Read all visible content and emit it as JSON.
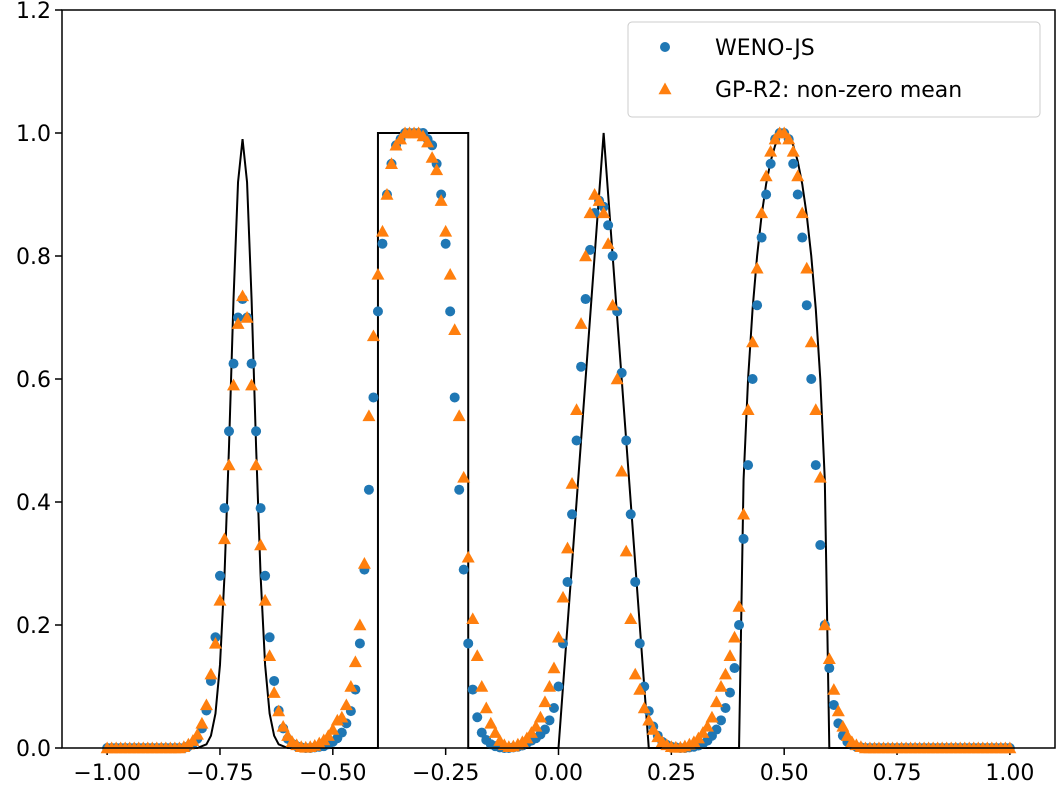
{
  "chart_data": {
    "type": "scatter",
    "x": [
      -1,
      -0.99,
      -0.98,
      -0.97,
      -0.96,
      -0.95,
      -0.94,
      -0.93,
      -0.92,
      -0.91,
      -0.9,
      -0.89,
      -0.88,
      -0.87,
      -0.86,
      -0.85,
      -0.84,
      -0.83,
      -0.82,
      -0.81,
      -0.8,
      -0.79,
      -0.78,
      -0.77,
      -0.76,
      -0.75,
      -0.74,
      -0.73,
      -0.72,
      -0.71,
      -0.7,
      -0.69,
      -0.68,
      -0.67,
      -0.66,
      -0.65,
      -0.64,
      -0.63,
      -0.62,
      -0.61,
      -0.6,
      -0.59,
      -0.58,
      -0.57,
      -0.56,
      -0.55,
      -0.54,
      -0.53,
      -0.52,
      -0.51,
      -0.5,
      -0.49,
      -0.48,
      -0.47,
      -0.46,
      -0.45,
      -0.44,
      -0.43,
      -0.42,
      -0.41,
      -0.4,
      -0.39,
      -0.38,
      -0.37,
      -0.36,
      -0.35,
      -0.34,
      -0.33,
      -0.32,
      -0.31,
      -0.3,
      -0.29,
      -0.28,
      -0.27,
      -0.26,
      -0.25,
      -0.24,
      -0.23,
      -0.22,
      -0.21,
      -0.2,
      -0.19,
      -0.18,
      -0.17,
      -0.16,
      -0.15,
      -0.14,
      -0.13,
      -0.12,
      -0.11,
      -0.1,
      -0.09,
      -0.08,
      -0.07,
      -0.06,
      -0.05,
      -0.04,
      -0.03,
      -0.02,
      -0.01,
      0,
      0.01,
      0.02,
      0.03,
      0.04,
      0.05,
      0.06,
      0.07,
      0.08,
      0.09,
      0.1,
      0.11,
      0.12,
      0.13,
      0.14,
      0.15,
      0.16,
      0.17,
      0.18,
      0.19,
      0.2,
      0.21,
      0.22,
      0.23,
      0.24,
      0.25,
      0.26,
      0.27,
      0.28,
      0.29,
      0.3,
      0.31,
      0.32,
      0.33,
      0.34,
      0.35,
      0.36,
      0.37,
      0.38,
      0.39,
      0.4,
      0.41,
      0.42,
      0.43,
      0.44,
      0.45,
      0.46,
      0.47,
      0.48,
      0.49,
      0.5,
      0.51,
      0.52,
      0.53,
      0.54,
      0.55,
      0.56,
      0.57,
      0.58,
      0.59,
      0.6,
      0.61,
      0.62,
      0.63,
      0.64,
      0.65,
      0.66,
      0.67,
      0.68,
      0.69,
      0.7,
      0.71,
      0.72,
      0.73,
      0.74,
      0.75,
      0.76,
      0.77,
      0.78,
      0.79,
      0.8,
      0.81,
      0.82,
      0.83,
      0.84,
      0.85,
      0.86,
      0.87,
      0.88,
      0.89,
      0.9,
      0.91,
      0.92,
      0.93,
      0.94,
      0.95,
      0.96,
      0.97,
      0.98,
      0.99,
      1
    ],
    "series": [
      {
        "name": "WENO-JS",
        "color": "#1f77b4",
        "marker": "circle",
        "values": [
          0,
          0,
          0,
          0,
          0,
          0,
          0,
          0,
          0,
          0,
          0,
          0,
          0,
          0,
          0,
          0,
          0,
          0,
          0.003,
          0.007,
          0.015,
          0.032,
          0.061,
          0.109,
          0.18,
          0.28,
          0.39,
          0.515,
          0.625,
          0.7,
          0.73,
          0.7,
          0.625,
          0.515,
          0.39,
          0.28,
          0.18,
          0.109,
          0.061,
          0.032,
          0.015,
          0.007,
          0.003,
          0.001,
          0,
          0,
          0.001,
          0.002,
          0.003,
          0.006,
          0.01,
          0.016,
          0.025,
          0.04,
          0.06,
          0.095,
          0.17,
          0.29,
          0.42,
          0.57,
          0.71,
          0.82,
          0.9,
          0.95,
          0.98,
          0.99,
          1.0,
          1.0,
          1.0,
          1.0,
          1.0,
          0.99,
          0.98,
          0.95,
          0.9,
          0.82,
          0.71,
          0.57,
          0.42,
          0.29,
          0.17,
          0.095,
          0.05,
          0.025,
          0.013,
          0.006,
          0.003,
          0.001,
          0,
          0,
          0.001,
          0.002,
          0.004,
          0.008,
          0.012,
          0.016,
          0.022,
          0.03,
          0.045,
          0.065,
          0.1,
          0.17,
          0.27,
          0.38,
          0.5,
          0.62,
          0.73,
          0.81,
          0.87,
          0.89,
          0.88,
          0.85,
          0.8,
          0.71,
          0.61,
          0.5,
          0.38,
          0.27,
          0.17,
          0.1,
          0.06,
          0.035,
          0.02,
          0.01,
          0.005,
          0.002,
          0.001,
          0,
          0,
          0.001,
          0.002,
          0.004,
          0.007,
          0.012,
          0.02,
          0.03,
          0.045,
          0.065,
          0.09,
          0.13,
          0.2,
          0.34,
          0.46,
          0.6,
          0.72,
          0.83,
          0.9,
          0.95,
          0.99,
          1.0,
          1.0,
          0.99,
          0.95,
          0.9,
          0.83,
          0.72,
          0.6,
          0.46,
          0.33,
          0.2,
          0.13,
          0.07,
          0.04,
          0.02,
          0.01,
          0.005,
          0.002,
          0.001,
          0,
          0,
          0,
          0,
          0,
          0,
          0,
          0,
          0,
          0,
          0,
          0,
          0,
          0,
          0,
          0,
          0,
          0,
          0,
          0,
          0,
          0,
          0,
          0,
          0,
          0,
          0,
          0,
          0,
          0,
          0,
          0,
          0
        ]
      },
      {
        "name": "GP-R2: non-zero mean",
        "color": "#ff7f0e",
        "marker": "triangle",
        "values": [
          0,
          0,
          0,
          0,
          0,
          0,
          0,
          0,
          0,
          0,
          0,
          0,
          0,
          0,
          0,
          0,
          0,
          0.002,
          0.006,
          0.012,
          0.022,
          0.04,
          0.07,
          0.12,
          0.17,
          0.24,
          0.34,
          0.46,
          0.59,
          0.69,
          0.735,
          0.7,
          0.59,
          0.46,
          0.33,
          0.24,
          0.15,
          0.09,
          0.06,
          0.035,
          0.02,
          0.01,
          0.005,
          0.002,
          0.001,
          0.002,
          0.004,
          0.008,
          0.013,
          0.02,
          0.03,
          0.045,
          0.05,
          0.07,
          0.1,
          0.14,
          0.2,
          0.3,
          0.54,
          0.67,
          0.77,
          0.84,
          0.9,
          0.95,
          0.98,
          0.99,
          1.0,
          1.0,
          1.0,
          1.0,
          0.995,
          0.985,
          0.96,
          0.94,
          0.89,
          0.84,
          0.77,
          0.68,
          0.54,
          0.44,
          0.31,
          0.21,
          0.15,
          0.1,
          0.065,
          0.04,
          0.025,
          0.012,
          0.005,
          0.002,
          0.003,
          0.006,
          0.01,
          0.016,
          0.025,
          0.035,
          0.05,
          0.075,
          0.1,
          0.13,
          0.18,
          0.245,
          0.325,
          0.43,
          0.55,
          0.69,
          0.8,
          0.87,
          0.9,
          0.89,
          0.87,
          0.82,
          0.72,
          0.6,
          0.45,
          0.32,
          0.21,
          0.12,
          0.095,
          0.065,
          0.045,
          0.03,
          0.018,
          0.01,
          0.005,
          0.002,
          0.001,
          0.001,
          0.003,
          0.006,
          0.01,
          0.016,
          0.025,
          0.035,
          0.05,
          0.075,
          0.1,
          0.12,
          0.15,
          0.18,
          0.23,
          0.38,
          0.55,
          0.66,
          0.78,
          0.87,
          0.93,
          0.97,
          0.99,
          1.0,
          1.0,
          0.99,
          0.97,
          0.93,
          0.87,
          0.78,
          0.66,
          0.55,
          0.44,
          0.2,
          0.145,
          0.095,
          0.06,
          0.035,
          0.02,
          0.01,
          0.005,
          0.002,
          0,
          0,
          0,
          0,
          0,
          0,
          0,
          0,
          0,
          0,
          0,
          0,
          0,
          0,
          0,
          0,
          0,
          0,
          0,
          0,
          0,
          0,
          0,
          0,
          0,
          0,
          0,
          0,
          0,
          0,
          0,
          0,
          0
        ]
      }
    ],
    "line": {
      "color": "#000000",
      "x": [
        -1,
        -0.8,
        -0.78,
        -0.77,
        -0.76,
        -0.75,
        -0.74,
        -0.73,
        -0.72,
        -0.71,
        -0.7,
        -0.69,
        -0.68,
        -0.67,
        -0.66,
        -0.65,
        -0.64,
        -0.63,
        -0.62,
        -0.6,
        -0.4,
        -0.4,
        -0.2,
        -0.2,
        0,
        0.1,
        0.2,
        0.4,
        0.41,
        0.42,
        0.43,
        0.44,
        0.45,
        0.46,
        0.47,
        0.48,
        0.49,
        0.5,
        0.51,
        0.52,
        0.53,
        0.54,
        0.55,
        0.56,
        0.57,
        0.58,
        0.59,
        0.6,
        1
      ],
      "values": [
        0,
        0,
        0.006,
        0.02,
        0.056,
        0.135,
        0.28,
        0.49,
        0.73,
        0.92,
        0.99,
        0.92,
        0.73,
        0.49,
        0.28,
        0.135,
        0.056,
        0.02,
        0.006,
        0,
        0,
        1,
        1,
        0,
        0,
        1,
        0,
        0,
        0.436,
        0.6,
        0.714,
        0.8,
        0.866,
        0.917,
        0.954,
        0.98,
        0.995,
        1,
        0.995,
        0.98,
        0.954,
        0.917,
        0.866,
        0.8,
        0.714,
        0.6,
        0.436,
        0,
        0
      ]
    },
    "xlim": [
      -1.1,
      1.1
    ],
    "ylim": [
      0,
      1.2
    ],
    "xticks": [
      {
        "value": -1,
        "label": "−1.00"
      },
      {
        "value": -0.75,
        "label": "−0.75"
      },
      {
        "value": -0.5,
        "label": "−0.50"
      },
      {
        "value": -0.25,
        "label": "−0.25"
      },
      {
        "value": 0,
        "label": "0.00"
      },
      {
        "value": 0.25,
        "label": "0.25"
      },
      {
        "value": 0.5,
        "label": "0.50"
      },
      {
        "value": 0.75,
        "label": "0.75"
      },
      {
        "value": 1,
        "label": "1.00"
      }
    ],
    "yticks": [
      {
        "value": 0,
        "label": "0.0"
      },
      {
        "value": 0.2,
        "label": "0.2"
      },
      {
        "value": 0.4,
        "label": "0.4"
      },
      {
        "value": 0.6,
        "label": "0.6"
      },
      {
        "value": 0.8,
        "label": "0.8"
      },
      {
        "value": 1,
        "label": "1.0"
      },
      {
        "value": 1.2,
        "label": "1.2"
      }
    ],
    "legend": "upper right",
    "grid": false
  }
}
